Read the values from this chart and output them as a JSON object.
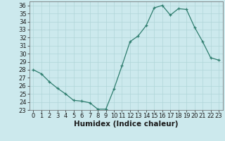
{
  "x": [
    0,
    1,
    2,
    3,
    4,
    5,
    6,
    7,
    8,
    9,
    10,
    11,
    12,
    13,
    14,
    15,
    16,
    17,
    18,
    19,
    20,
    21,
    22,
    23
  ],
  "y": [
    28.0,
    27.5,
    26.5,
    25.7,
    25.0,
    24.2,
    24.1,
    23.9,
    23.1,
    23.1,
    25.6,
    28.5,
    31.5,
    32.2,
    33.5,
    35.7,
    36.0,
    34.8,
    35.6,
    35.5,
    33.3,
    31.5,
    29.5,
    29.2
  ],
  "xlabel": "Humidex (Indice chaleur)",
  "ylim": [
    23,
    36.5
  ],
  "xlim": [
    -0.5,
    23.5
  ],
  "yticks": [
    23,
    24,
    25,
    26,
    27,
    28,
    29,
    30,
    31,
    32,
    33,
    34,
    35,
    36
  ],
  "xticks": [
    0,
    1,
    2,
    3,
    4,
    5,
    6,
    7,
    8,
    9,
    10,
    11,
    12,
    13,
    14,
    15,
    16,
    17,
    18,
    19,
    20,
    21,
    22,
    23
  ],
  "line_color": "#2e7d6e",
  "bg_color": "#cce9ed",
  "grid_color": "#b0d5d8",
  "tick_fontsize": 6,
  "xlabel_fontsize": 7.5
}
